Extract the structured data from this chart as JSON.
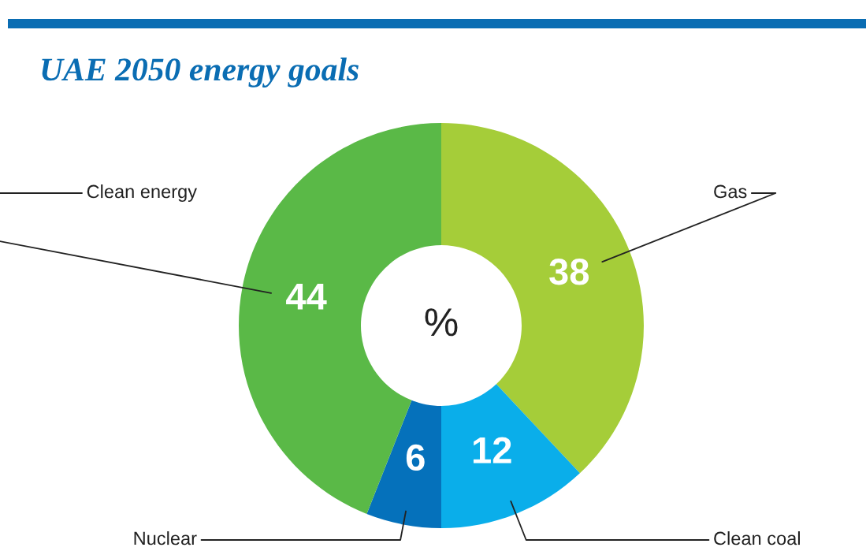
{
  "chart_data": {
    "type": "donut",
    "title": "UAE 2050 energy goals",
    "categories": [
      "Gas",
      "Clean coal",
      "Nuclear",
      "Clean energy"
    ],
    "values": [
      38,
      12,
      6,
      44
    ],
    "colors": [
      "#a5cd39",
      "#0aaeea",
      "#0571bb",
      "#5ab947"
    ],
    "data_labels": true,
    "annotations": [
      "%"
    ]
  }
}
